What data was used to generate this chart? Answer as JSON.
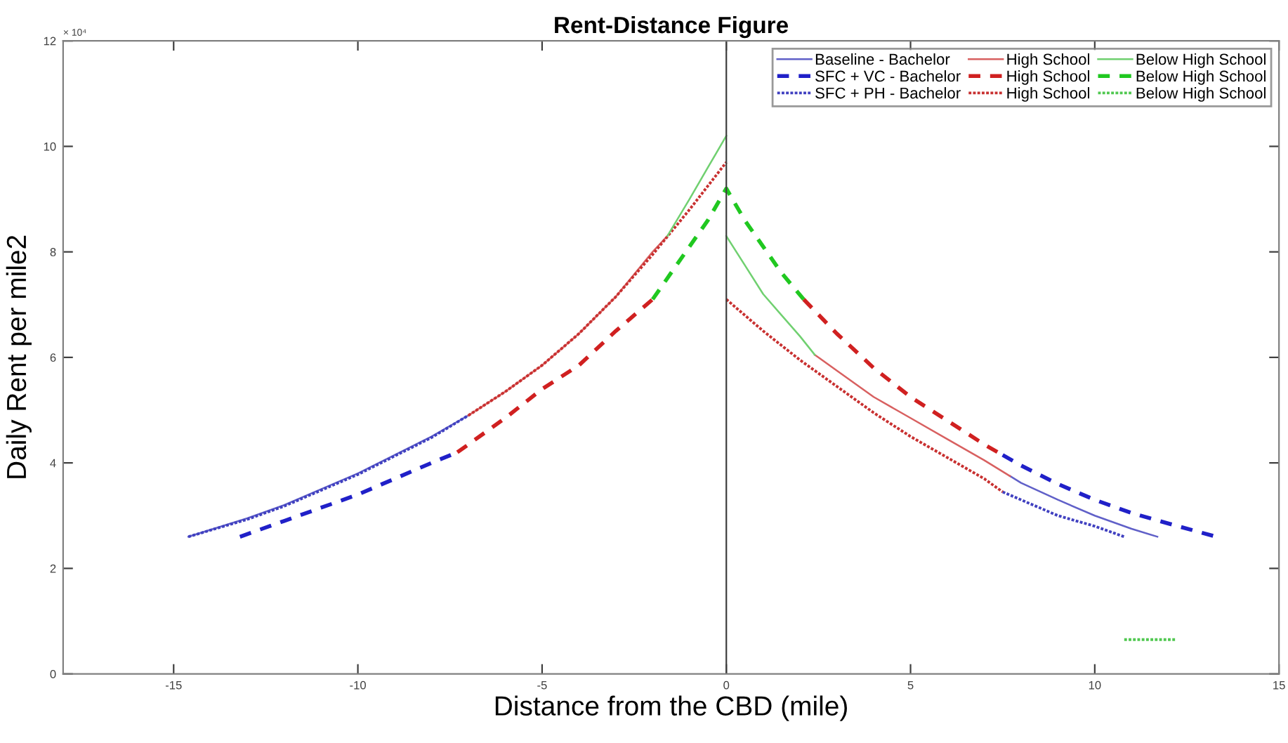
{
  "chart_data": {
    "type": "line",
    "title": "Rent-Distance Figure",
    "xlabel": "Distance from the CBD (mile)",
    "ylabel": "Daily Rent per mile2",
    "xlim": [
      -18,
      15
    ],
    "xticks": [
      -15,
      -10,
      -5,
      0,
      5,
      10,
      15
    ],
    "ylim": [
      0,
      12
    ],
    "yticks": [
      0,
      2,
      4,
      6,
      8,
      10,
      12
    ],
    "annotations": [
      "× 10⁴"
    ],
    "grid": false,
    "legend": "top right",
    "ref_lines": [
      {
        "axis": "x",
        "value": 0,
        "color": "#404040"
      }
    ],
    "series": [
      {
        "name": "Baseline - Bachelor",
        "color": "#6060c8",
        "line_style": "solid",
        "x": [
          -14.6,
          -13,
          -12,
          -11,
          -10,
          -9,
          -8,
          -7,
          0,
          7.7,
          8,
          9,
          10,
          11,
          11.7
        ],
        "values": [
          2.6,
          2.95,
          3.2,
          3.5,
          3.8,
          4.15,
          4.5,
          4.9,
          null,
          3.75,
          3.62,
          3.3,
          3.0,
          2.75,
          2.6
        ]
      },
      {
        "name": "SFC + VC - Bachelor",
        "color": "#2020c8",
        "line_style": "dashed",
        "x": [
          -13.2,
          -12,
          -11,
          -10,
          -9,
          -8,
          -7.3,
          0,
          7.5,
          8,
          9,
          10,
          11,
          12,
          13.3
        ],
        "values": [
          2.6,
          2.9,
          3.15,
          3.4,
          3.7,
          4.0,
          4.2,
          null,
          4.15,
          3.95,
          3.6,
          3.3,
          3.05,
          2.85,
          2.6
        ]
      },
      {
        "name": "SFC + PH - Bachelor",
        "color": "#4040c0",
        "line_style": "dotted",
        "x": [
          -14.6,
          -13,
          -12,
          -11,
          -10,
          -9,
          -8,
          -7,
          0,
          7.5,
          8,
          9,
          10,
          10.8
        ],
        "values": [
          2.6,
          2.93,
          3.18,
          3.48,
          3.78,
          4.13,
          4.48,
          4.9,
          null,
          3.45,
          3.3,
          3.0,
          2.8,
          2.6
        ]
      },
      {
        "name": "High School",
        "color": "#d86060",
        "line_style": "solid",
        "x": [
          -7,
          -6,
          -5,
          -4,
          -3,
          -2,
          -1.6,
          0,
          2.4,
          3,
          4,
          5,
          6,
          7,
          7.7
        ],
        "values": [
          4.9,
          5.35,
          5.85,
          6.45,
          7.15,
          8.0,
          8.3,
          null,
          6.05,
          5.75,
          5.25,
          4.85,
          4.45,
          4.05,
          3.75
        ]
      },
      {
        "name": "High School",
        "color": "#d02020",
        "line_style": "dashed",
        "x": [
          -7.3,
          -6,
          -5,
          -4,
          -3,
          -2,
          0,
          2.1,
          3,
          4,
          5,
          6,
          7,
          7.5
        ],
        "values": [
          4.2,
          4.85,
          5.4,
          5.85,
          6.5,
          7.1,
          null,
          7.1,
          6.45,
          5.8,
          5.25,
          4.8,
          4.35,
          4.15
        ]
      },
      {
        "name": "High School",
        "color": "#c83030",
        "line_style": "dotted",
        "x": [
          -7,
          -6,
          -5,
          -4,
          -3,
          -2,
          -1,
          0,
          null,
          0,
          1,
          2,
          3,
          4,
          5,
          6,
          7,
          7.5
        ],
        "values": [
          4.9,
          5.35,
          5.85,
          6.45,
          7.15,
          7.95,
          8.8,
          9.7,
          null,
          7.1,
          6.5,
          5.95,
          5.45,
          4.95,
          4.5,
          4.1,
          3.7,
          3.45
        ]
      },
      {
        "name": "Below High School",
        "color": "#70d070",
        "line_style": "solid",
        "x": [
          -1.6,
          -1,
          -0.5,
          0,
          null,
          0,
          0.5,
          1,
          1.5,
          2,
          2.4
        ],
        "values": [
          8.3,
          9.0,
          9.6,
          10.2,
          null,
          8.3,
          7.75,
          7.2,
          6.8,
          6.4,
          6.05
        ]
      },
      {
        "name": "Below High School",
        "color": "#20c820",
        "line_style": "dashed",
        "x": [
          -2,
          -1.5,
          -1,
          -0.5,
          0,
          0.5,
          1,
          1.5,
          2.1
        ],
        "values": [
          7.1,
          7.6,
          8.1,
          8.6,
          9.2,
          8.6,
          8.1,
          7.6,
          7.1
        ]
      },
      {
        "name": "Below High School",
        "color": "#50c850",
        "line_style": "dotted",
        "x": [
          10.8,
          12.2
        ],
        "values": [
          0.65,
          0.65
        ]
      }
    ]
  }
}
